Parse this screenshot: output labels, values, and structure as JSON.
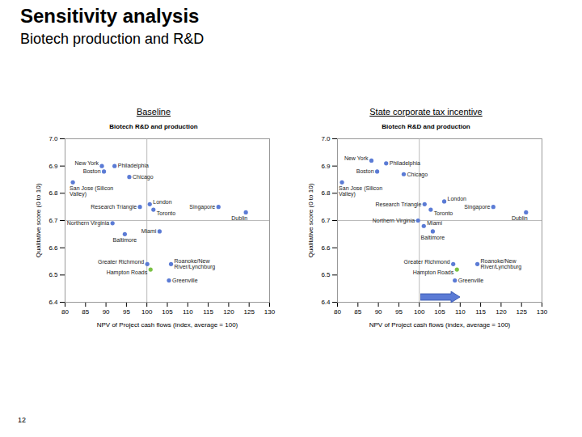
{
  "title": "Sensitivity analysis",
  "subtitle": "Biotech production and R&D",
  "page": "12",
  "chart_data": [
    {
      "type": "scatter",
      "panel_title": "Baseline",
      "title": "Biotech R&D and production",
      "xlabel": "NPV of Project cash flows (index, average = 100)",
      "ylabel": "Qualitative score (0 to 10)",
      "marker": "circle",
      "grid": false,
      "xlim": [
        80,
        130
      ],
      "xticks": [
        80,
        85,
        90,
        95,
        100,
        105,
        110,
        115,
        120,
        125,
        130
      ],
      "ylim": [
        6.4,
        7.0
      ],
      "yticks": [
        6.4,
        6.5,
        6.6,
        6.7,
        6.8,
        6.9,
        {
          "value": 7.0,
          "label": "7.0"
        }
      ],
      "x_reference": 100,
      "y_reference": 6.7,
      "point_labels": [
        "New York",
        "Philadelphia",
        "Boston",
        "Chicago",
        "San Jose (Silicon Valley)",
        "Research Triangle",
        "London",
        "Toronto",
        "Singapore",
        "Dublin",
        "Northern Virginia",
        "Miami",
        "Baltimore",
        "Greater Richmond",
        "Roanoke/New River/Lynchburg",
        "Hampton Roads",
        "Greenville"
      ],
      "x": [
        89.0,
        92.1,
        89.5,
        95.7,
        81.9,
        98.3,
        100.7,
        101.6,
        117.5,
        124.2,
        91.6,
        103.1,
        94.6,
        100.1,
        105.9,
        100.9,
        105.4
      ],
      "values": [
        6.9,
        6.9,
        6.88,
        6.86,
        6.84,
        6.75,
        6.76,
        6.74,
        6.75,
        6.73,
        6.69,
        6.66,
        6.65,
        6.54,
        6.54,
        6.52,
        6.48
      ],
      "colors": [
        "#5b7bd5",
        "#5b7bd5",
        "#5b7bd5",
        "#5b7bd5",
        "#5b7bd5",
        "#5b7bd5",
        "#5b7bd5",
        "#5b7bd5",
        "#5b7bd5",
        "#5b7bd5",
        "#5b7bd5",
        "#5b7bd5",
        "#5b7bd5",
        "#5b7bd5",
        "#5b7bd5",
        "#7ac143",
        "#5b7bd5"
      ]
    },
    {
      "type": "scatter",
      "panel_title": "State corporate tax incentive",
      "title": "Biotech R&D and production",
      "xlabel": "NPV of Project cash flows (index, average = 100)",
      "ylabel": "Qualitative score (0 to 10)",
      "marker": "circle",
      "grid": false,
      "xlim": [
        80,
        130
      ],
      "xticks": [
        80,
        85,
        90,
        95,
        100,
        105,
        110,
        115,
        120,
        125,
        130
      ],
      "ylim": [
        6.4,
        7.0
      ],
      "yticks": [
        6.4,
        6.5,
        6.6,
        6.7,
        6.8,
        6.9,
        {
          "value": 7.0,
          "label": "7.0"
        }
      ],
      "x_reference": 100,
      "y_reference": 6.7,
      "point_labels": [
        "New York",
        "Philadelphia",
        "Boston",
        "Chicago",
        "San Jose (Silicon Valley)",
        "Research Triangle",
        "London",
        "Toronto",
        "Singapore",
        "Dublin",
        "Northern Virginia",
        "Miami",
        "Baltimore",
        "Greater Richmond",
        "Roanoke/New River/Lynchburg",
        "Hampton Roads",
        "Greenville"
      ],
      "x": [
        88.3,
        91.9,
        89.7,
        96.2,
        81.1,
        101.3,
        106.1,
        102.8,
        118.1,
        126.1,
        99.7,
        101.1,
        103.3,
        108.3,
        114.2,
        109.2,
        108.7
      ],
      "values": [
        6.92,
        6.91,
        6.88,
        6.87,
        6.84,
        6.76,
        6.77,
        6.74,
        6.75,
        6.73,
        6.7,
        6.68,
        6.66,
        6.54,
        6.54,
        6.52,
        6.48
      ],
      "colors": [
        "#5b7bd5",
        "#5b7bd5",
        "#5b7bd5",
        "#5b7bd5",
        "#5b7bd5",
        "#5b7bd5",
        "#5b7bd5",
        "#5b7bd5",
        "#5b7bd5",
        "#5b7bd5",
        "#5b7bd5",
        "#5b7bd5",
        "#5b7bd5",
        "#5b7bd5",
        "#5b7bd5",
        "#7ac143",
        "#5b7bd5"
      ]
    }
  ]
}
